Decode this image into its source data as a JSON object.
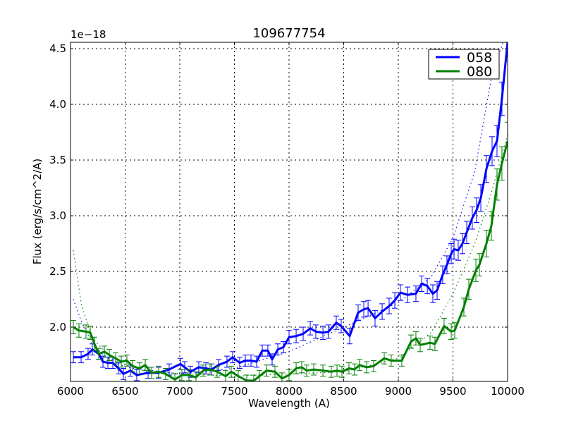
{
  "chart_data": {
    "type": "line",
    "title": "109677754",
    "xlabel": "Wavelength (A)",
    "ylabel": "Flux (erg/s/cm^2/A)",
    "offset_text": "1e−18",
    "xlim": [
      6000,
      10000
    ],
    "ylim": [
      1.513,
      4.557
    ],
    "xticks": [
      6000,
      6500,
      7000,
      7500,
      8000,
      8500,
      9000,
      9500,
      10000
    ],
    "xtick_labels": [
      "6000",
      "6500",
      "7000",
      "7500",
      "8000",
      "8500",
      "9000",
      "9500",
      "10000"
    ],
    "yticks": [
      2.0,
      2.5,
      3.0,
      3.5,
      4.0,
      4.5
    ],
    "ytick_labels": [
      "2.0",
      "2.5",
      "3.0",
      "3.5",
      "4.0",
      "4.5"
    ],
    "grid": true,
    "legend_placement": "top-right",
    "series": [
      {
        "name": "058",
        "color": "#0000ff",
        "points": [
          [
            6026,
            1.73,
            0.05
          ],
          [
            6097,
            1.73,
            0.05
          ],
          [
            6161,
            1.76,
            0.05
          ],
          [
            6200,
            1.8,
            0.05
          ],
          [
            6258,
            1.76,
            0.05
          ],
          [
            6297,
            1.69,
            0.05
          ],
          [
            6342,
            1.68,
            0.05
          ],
          [
            6387,
            1.68,
            0.05
          ],
          [
            6439,
            1.63,
            0.05
          ],
          [
            6484,
            1.58,
            0.05
          ],
          [
            6548,
            1.61,
            0.05
          ],
          [
            6606,
            1.57,
            0.05
          ],
          [
            6710,
            1.59,
            0.05
          ],
          [
            6806,
            1.59,
            0.05
          ],
          [
            6903,
            1.62,
            0.05
          ],
          [
            7006,
            1.67,
            0.05
          ],
          [
            7045,
            1.64,
            0.05
          ],
          [
            7097,
            1.6,
            0.05
          ],
          [
            7174,
            1.64,
            0.05
          ],
          [
            7239,
            1.63,
            0.05
          ],
          [
            7290,
            1.62,
            0.05
          ],
          [
            7355,
            1.66,
            0.05
          ],
          [
            7432,
            1.69,
            0.05
          ],
          [
            7484,
            1.73,
            0.05
          ],
          [
            7548,
            1.68,
            0.05
          ],
          [
            7600,
            1.7,
            0.05
          ],
          [
            7652,
            1.7,
            0.05
          ],
          [
            7703,
            1.69,
            0.05
          ],
          [
            7755,
            1.79,
            0.05
          ],
          [
            7806,
            1.79,
            0.05
          ],
          [
            7845,
            1.71,
            0.05
          ],
          [
            7897,
            1.8,
            0.05
          ],
          [
            7948,
            1.82,
            0.05
          ],
          [
            8000,
            1.91,
            0.06
          ],
          [
            8065,
            1.92,
            0.06
          ],
          [
            8129,
            1.94,
            0.06
          ],
          [
            8194,
            1.99,
            0.06
          ],
          [
            8245,
            1.96,
            0.06
          ],
          [
            8310,
            1.95,
            0.06
          ],
          [
            8361,
            1.96,
            0.06
          ],
          [
            8432,
            2.04,
            0.06
          ],
          [
            8477,
            2.01,
            0.06
          ],
          [
            8555,
            1.92,
            0.07
          ],
          [
            8632,
            2.13,
            0.07
          ],
          [
            8684,
            2.16,
            0.07
          ],
          [
            8723,
            2.17,
            0.07
          ],
          [
            8787,
            2.08,
            0.07
          ],
          [
            8852,
            2.14,
            0.07
          ],
          [
            8916,
            2.19,
            0.07
          ],
          [
            8968,
            2.24,
            0.07
          ],
          [
            9019,
            2.31,
            0.07
          ],
          [
            9084,
            2.29,
            0.07
          ],
          [
            9161,
            2.3,
            0.07
          ],
          [
            9213,
            2.39,
            0.07
          ],
          [
            9265,
            2.37,
            0.07
          ],
          [
            9316,
            2.3,
            0.08
          ],
          [
            9355,
            2.33,
            0.08
          ],
          [
            9406,
            2.47,
            0.08
          ],
          [
            9445,
            2.56,
            0.08
          ],
          [
            9484,
            2.66,
            0.09
          ],
          [
            9510,
            2.7,
            0.09
          ],
          [
            9548,
            2.69,
            0.09
          ],
          [
            9587,
            2.75,
            0.09
          ],
          [
            9626,
            2.85,
            0.1
          ],
          [
            9677,
            2.98,
            0.1
          ],
          [
            9716,
            3.05,
            0.11
          ],
          [
            9755,
            3.16,
            0.12
          ],
          [
            9806,
            3.42,
            0.12
          ],
          [
            9858,
            3.58,
            0.13
          ],
          [
            9903,
            3.67,
            0.14
          ],
          [
            9948,
            4.05,
            0.15
          ],
          [
            10000,
            4.56,
            0.17
          ]
        ],
        "fit": [
          [
            6026,
            2.25
          ],
          [
            6100,
            2.05
          ],
          [
            6200,
            1.85
          ],
          [
            6300,
            1.75
          ],
          [
            6500,
            1.64
          ],
          [
            7000,
            1.58
          ],
          [
            7500,
            1.63
          ],
          [
            8000,
            1.78
          ],
          [
            8500,
            2.0
          ],
          [
            9000,
            2.22
          ],
          [
            9300,
            2.45
          ],
          [
            9500,
            2.8
          ],
          [
            9700,
            3.4
          ],
          [
            9850,
            4.23
          ],
          [
            9960,
            4.56
          ]
        ]
      },
      {
        "name": "080",
        "color": "#008000",
        "points": [
          [
            6026,
            2.0,
            0.06
          ],
          [
            6077,
            1.97,
            0.06
          ],
          [
            6142,
            1.96,
            0.06
          ],
          [
            6181,
            1.95,
            0.06
          ],
          [
            6219,
            1.85,
            0.06
          ],
          [
            6258,
            1.76,
            0.05
          ],
          [
            6310,
            1.78,
            0.05
          ],
          [
            6355,
            1.75,
            0.05
          ],
          [
            6413,
            1.72,
            0.05
          ],
          [
            6465,
            1.69,
            0.05
          ],
          [
            6516,
            1.7,
            0.05
          ],
          [
            6568,
            1.65,
            0.05
          ],
          [
            6632,
            1.63,
            0.05
          ],
          [
            6684,
            1.66,
            0.05
          ],
          [
            6742,
            1.59,
            0.05
          ],
          [
            6806,
            1.6,
            0.05
          ],
          [
            6871,
            1.58,
            0.05
          ],
          [
            6955,
            1.53,
            0.05
          ],
          [
            7019,
            1.57,
            0.05
          ],
          [
            7084,
            1.57,
            0.05
          ],
          [
            7148,
            1.55,
            0.05
          ],
          [
            7213,
            1.61,
            0.05
          ],
          [
            7277,
            1.62,
            0.05
          ],
          [
            7342,
            1.6,
            0.05
          ],
          [
            7419,
            1.56,
            0.05
          ],
          [
            7471,
            1.6,
            0.05
          ],
          [
            7535,
            1.56,
            0.05
          ],
          [
            7613,
            1.52,
            0.05
          ],
          [
            7677,
            1.52,
            0.05
          ],
          [
            7729,
            1.56,
            0.05
          ],
          [
            7794,
            1.61,
            0.05
          ],
          [
            7871,
            1.6,
            0.05
          ],
          [
            7935,
            1.54,
            0.05
          ],
          [
            8000,
            1.57,
            0.05
          ],
          [
            8065,
            1.63,
            0.05
          ],
          [
            8116,
            1.64,
            0.05
          ],
          [
            8161,
            1.61,
            0.05
          ],
          [
            8226,
            1.62,
            0.05
          ],
          [
            8310,
            1.61,
            0.05
          ],
          [
            8387,
            1.6,
            0.05
          ],
          [
            8439,
            1.61,
            0.05
          ],
          [
            8484,
            1.6,
            0.05
          ],
          [
            8548,
            1.63,
            0.05
          ],
          [
            8600,
            1.62,
            0.05
          ],
          [
            8645,
            1.66,
            0.05
          ],
          [
            8710,
            1.64,
            0.05
          ],
          [
            8774,
            1.65,
            0.05
          ],
          [
            8871,
            1.72,
            0.05
          ],
          [
            8935,
            1.7,
            0.05
          ],
          [
            9032,
            1.7,
            0.05
          ],
          [
            9116,
            1.87,
            0.06
          ],
          [
            9161,
            1.9,
            0.06
          ],
          [
            9200,
            1.84,
            0.06
          ],
          [
            9290,
            1.86,
            0.06
          ],
          [
            9335,
            1.85,
            0.06
          ],
          [
            9419,
            2.01,
            0.07
          ],
          [
            9484,
            1.96,
            0.07
          ],
          [
            9516,
            1.97,
            0.07
          ],
          [
            9600,
            2.18,
            0.08
          ],
          [
            9645,
            2.34,
            0.09
          ],
          [
            9710,
            2.51,
            0.1
          ],
          [
            9742,
            2.56,
            0.1
          ],
          [
            9806,
            2.75,
            0.12
          ],
          [
            9852,
            2.91,
            0.13
          ],
          [
            9903,
            3.28,
            0.14
          ],
          [
            9948,
            3.47,
            0.15
          ],
          [
            10000,
            3.67,
            0.17
          ]
        ],
        "fit": [
          [
            6026,
            2.69
          ],
          [
            6100,
            2.2
          ],
          [
            6200,
            1.9
          ],
          [
            6400,
            1.7
          ],
          [
            6700,
            1.6
          ],
          [
            7500,
            1.56
          ],
          [
            8500,
            1.6
          ],
          [
            9000,
            1.72
          ],
          [
            9300,
            1.95
          ],
          [
            9500,
            2.3
          ],
          [
            9700,
            2.75
          ],
          [
            9850,
            3.2
          ],
          [
            10000,
            3.73
          ]
        ]
      }
    ]
  }
}
